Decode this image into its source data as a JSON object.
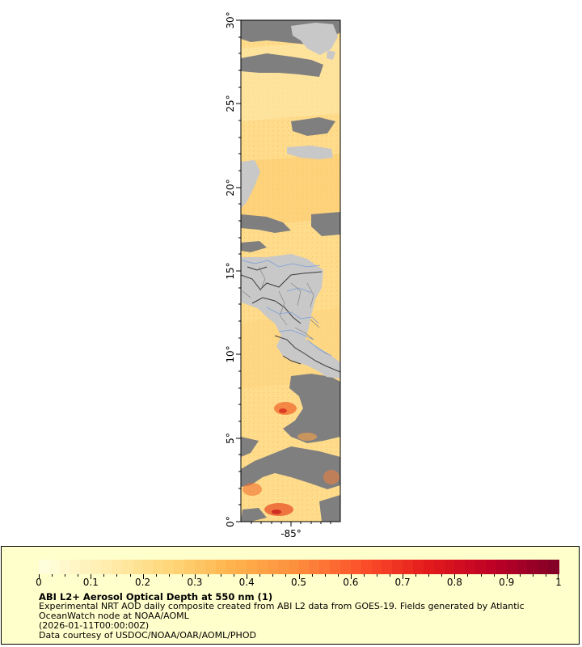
{
  "map": {
    "lat_ticks": [
      "0°",
      "5°",
      "10°",
      "15°",
      "20°",
      "25°",
      "30°"
    ],
    "lon_ticks": [
      "-85°"
    ],
    "colors": {
      "no_data": "#7f7f7f",
      "land": "#c8c8c8",
      "border": "#3a3a3a",
      "river": "#7a9fd8"
    }
  },
  "legend": {
    "title": "ABI L2+ Aerosol Optical Depth at 550 nm (1)",
    "line1": "Experimental NRT AOD daily composite created from ABI L2 data from GOES-19. Fields generated by Atlantic OceanWatch node at NOAA/AOML",
    "line2": "(2026-01-11T00:00:00Z)",
    "line3": "Data courtesy of USDOC/NOAA/OAR/AOML/PHOD",
    "tick_labels": [
      "0",
      "0.1",
      "0.2",
      "0.3",
      "0.4",
      "0.5",
      "0.6",
      "0.7",
      "0.8",
      "0.9",
      "1"
    ],
    "colormap": [
      "#ffffe0",
      "#ffeeb0",
      "#fed77a",
      "#feb24c",
      "#fd8d3c",
      "#fc4e2a",
      "#e31a1c",
      "#bd0026",
      "#800026"
    ]
  }
}
